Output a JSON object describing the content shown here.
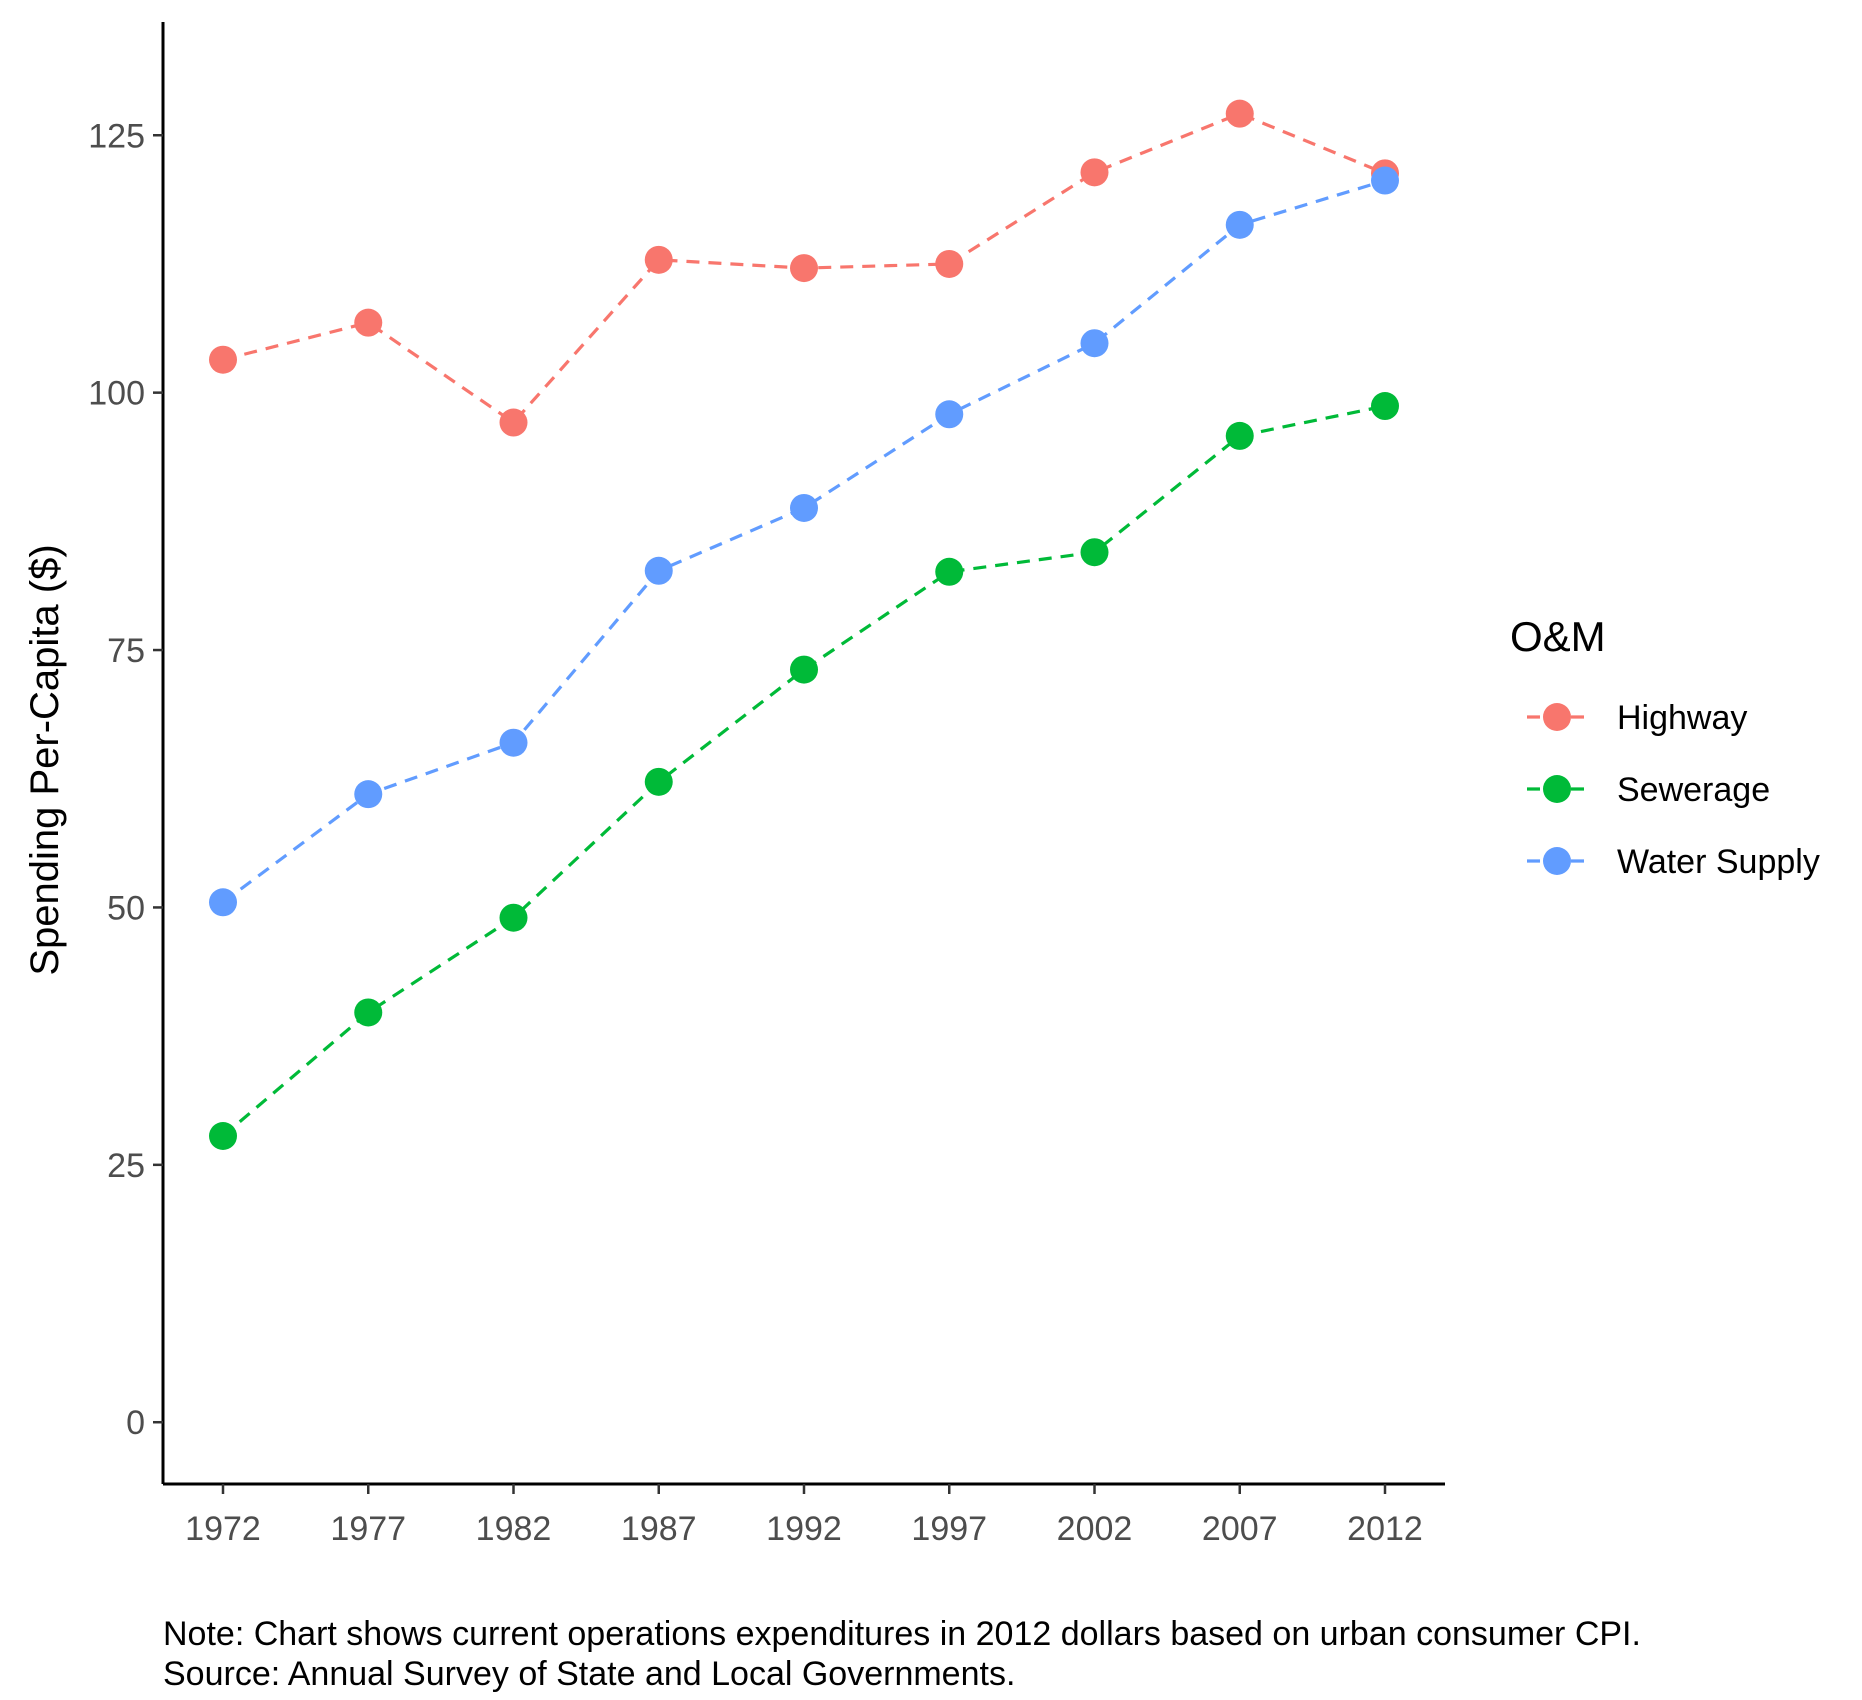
{
  "chart_data": {
    "type": "line",
    "title": "",
    "xlabel": "",
    "ylabel": "Spending Per-Capita ($)",
    "x": [
      1972,
      1977,
      1982,
      1987,
      1992,
      1997,
      2002,
      2007,
      2012
    ],
    "x_tick_labels": [
      "1972",
      "1977",
      "1982",
      "1987",
      "1992",
      "1997",
      "2002",
      "2007",
      "2012"
    ],
    "y_ticks": [
      0,
      25,
      50,
      75,
      100,
      125
    ],
    "y_tick_labels": [
      "0",
      "25",
      "50",
      "75",
      "100",
      "125"
    ],
    "ylim": [
      -6,
      136
    ],
    "grid": false,
    "legend": {
      "title": "O&M",
      "position": "right"
    },
    "series": [
      {
        "name": "Highway",
        "color": "#F8766D",
        "line_style": "dashed",
        "values": [
          103.2,
          106.8,
          97.1,
          112.9,
          112.1,
          112.5,
          121.4,
          127.1,
          121.3
        ]
      },
      {
        "name": "Sewerage",
        "color": "#00BA38",
        "line_style": "dashed",
        "values": [
          27.8,
          39.8,
          49.0,
          62.2,
          73.1,
          82.6,
          84.5,
          95.8,
          98.7
        ]
      },
      {
        "name": "Water Supply",
        "color": "#619CFF",
        "line_style": "dashed",
        "values": [
          50.5,
          61.0,
          66.0,
          82.7,
          88.8,
          97.9,
          104.8,
          116.3,
          120.6
        ]
      }
    ],
    "caption": [
      "Note: Chart shows current operations expenditures in 2012 dollars based on urban consumer CPI.",
      "Source: Annual Survey of State and Local Governments."
    ]
  }
}
